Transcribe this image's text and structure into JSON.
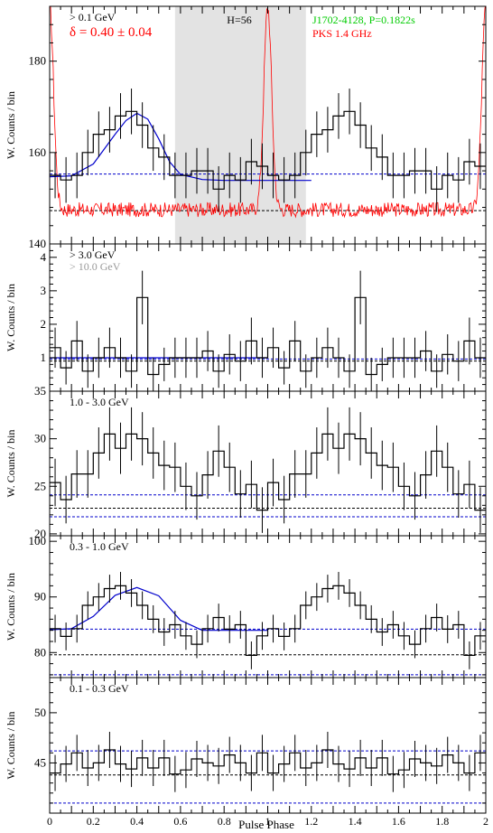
{
  "figure": {
    "xlabel": "Pulse Phase",
    "x_ticks": [
      "0",
      "0.2",
      "0.4",
      "0.6",
      "0.8",
      "1",
      "1.2",
      "1.4",
      "1.6",
      "1.8",
      "2"
    ]
  },
  "colors": {
    "axis": "#000000",
    "histogram": "#000000",
    "radio": "#ff0000",
    "fit": "#0000cc",
    "baseline_black": "#000000",
    "baseline_blue": "#0000cc",
    "offpulse": "#e3e3e3",
    "legend_green": "#00cc00",
    "legend_red": "#ff0000",
    "legend_gray": "#999999"
  },
  "chart_data": [
    {
      "type": "line",
      "panel": "0.1 GeV",
      "ylabel": "W. Counts / bin",
      "ylim": [
        140,
        192
      ],
      "yticks": [
        140,
        160,
        180
      ],
      "energy_label": "> 0.1 GeV",
      "delta_label": "δ = 0.40 ± 0.04",
      "h_label": "H=56",
      "pulsar_label": "J1702-4128, P=0.1822s",
      "radio_label": "PKS 1.4 GHz",
      "offpulse_region": [
        0.575,
        1.175
      ],
      "bin_width": 0.05,
      "counts": [
        155,
        154,
        155,
        160,
        164,
        165,
        168,
        169,
        166,
        161,
        159,
        155,
        155,
        156,
        156,
        152,
        155,
        154,
        158,
        157
      ],
      "errors": [
        5,
        5,
        5,
        5,
        5,
        5,
        5,
        5,
        5,
        5,
        5,
        5,
        5,
        5,
        5,
        5,
        5,
        5,
        5,
        5
      ],
      "baselines": [
        {
          "y": 155.3,
          "color": "blue"
        },
        {
          "y": 147.3,
          "color": "black"
        }
      ],
      "fit": {
        "x": [
          0,
          0.1,
          0.2,
          0.3,
          0.35,
          0.4,
          0.45,
          0.5,
          0.55,
          0.6,
          0.7,
          0.8,
          1.0,
          1.2
        ],
        "y": [
          154.7,
          154.9,
          157.5,
          164.0,
          167.0,
          168.6,
          167.3,
          163.0,
          158.0,
          155.2,
          154.1,
          153.9,
          153.9,
          153.9
        ]
      },
      "radio": {
        "base": 147.5,
        "peak": 192,
        "peak_phase": 1.0,
        "width": 0.018
      }
    },
    {
      "type": "line",
      "panel": "3.0 GeV",
      "ylabel": "W. Counts / bin",
      "ylim": [
        0,
        4.4
      ],
      "yticks": [
        1,
        2,
        3,
        4
      ],
      "energy_label": "> 3.0 GeV",
      "energy_label_2": "> 10.0 GeV",
      "bin_width": 0.05,
      "counts": [
        1.3,
        0.7,
        1.5,
        0.6,
        1.0,
        1.3,
        1.0,
        0.6,
        2.8,
        0.5,
        0.8,
        1.0,
        1.0,
        1.0,
        1.2,
        0.6,
        1.1,
        0.9,
        1.5,
        1.0
      ],
      "errors": [
        0.6,
        0.5,
        0.6,
        0.5,
        0.6,
        0.6,
        0.6,
        0.5,
        0.8,
        0.5,
        0.5,
        0.6,
        0.6,
        0.6,
        0.6,
        0.5,
        0.6,
        0.6,
        0.7,
        0.6
      ],
      "baselines": [
        {
          "y": 0.96,
          "color": "blue"
        },
        {
          "y": 0.9,
          "color": "black"
        }
      ],
      "fit": {
        "x": [
          0,
          0.4,
          0.8,
          1.0
        ],
        "y": [
          1.0,
          1.0,
          1.0,
          1.0
        ]
      }
    },
    {
      "type": "line",
      "panel": "1.0-3.0 GeV",
      "ylabel": "W. Counts / bin",
      "ylim": [
        19.8,
        35
      ],
      "yticks": [
        20,
        25,
        30,
        35
      ],
      "energy_label": "1.0 - 3.0 GeV",
      "bin_width": 0.05,
      "counts": [
        25.4,
        23.6,
        26.3,
        26.3,
        28.5,
        30.5,
        29.0,
        30.5,
        30.0,
        28.5,
        27.2,
        27.0,
        25.0,
        24.0,
        26.2,
        28.7,
        27.0,
        24.2,
        25.2,
        22.5
      ],
      "errors": [
        2.5,
        2.5,
        2.5,
        2.5,
        2.7,
        2.8,
        2.7,
        2.8,
        2.8,
        2.7,
        2.6,
        2.6,
        2.5,
        2.5,
        2.5,
        2.7,
        2.6,
        2.5,
        2.5,
        2.4
      ],
      "baselines": [
        {
          "y": 24.1,
          "color": "blue"
        },
        {
          "y": 22.7,
          "color": "black"
        },
        {
          "y": 21.8,
          "color": "blue"
        }
      ]
    },
    {
      "type": "line",
      "panel": "0.3-1.0 GeV",
      "ylabel": "W. Counts / bin",
      "ylim": [
        75.5,
        101
      ],
      "yticks": [
        80,
        90,
        100
      ],
      "energy_label": "0.3 - 1.0 GeV",
      "bin_width": 0.05,
      "counts": [
        84.3,
        82.9,
        84.3,
        88.5,
        90.0,
        91.5,
        92.0,
        90.7,
        88.5,
        86.0,
        83.7,
        85.0,
        83.0,
        81.5,
        84.3,
        86.3,
        84.2,
        85.0,
        79.5,
        83.0
      ],
      "errors": [
        2.5,
        2.5,
        2.5,
        2.5,
        2.5,
        2.5,
        2.5,
        2.5,
        2.5,
        2.5,
        2.5,
        2.5,
        2.5,
        2.5,
        2.5,
        2.5,
        2.5,
        2.5,
        2.5,
        2.5
      ],
      "baselines": [
        {
          "y": 84.2,
          "color": "blue"
        },
        {
          "y": 79.6,
          "color": "black"
        },
        {
          "y": 76.0,
          "color": "blue"
        }
      ],
      "fit": {
        "x": [
          0,
          0.1,
          0.2,
          0.3,
          0.4,
          0.5,
          0.55,
          0.6,
          0.7,
          1.0
        ],
        "y": [
          84.1,
          84.3,
          86.5,
          90.3,
          91.7,
          90.2,
          88.0,
          85.8,
          84.0,
          84.0
        ]
      }
    },
    {
      "type": "line",
      "panel": "0.1-0.3 GeV",
      "ylabel": "W. Counts / bin",
      "ylim": [
        40.0,
        53.5
      ],
      "yticks": [
        45,
        50
      ],
      "energy_label": "0.1 - 0.3 GeV",
      "bin_width": 0.05,
      "counts": [
        44.0,
        44.9,
        46.0,
        44.5,
        45.0,
        46.3,
        44.9,
        44.4,
        45.5,
        44.5,
        45.5,
        43.9,
        44.3,
        45.4,
        45.0,
        44.7,
        45.8,
        45.0,
        44.0,
        46.0
      ],
      "errors": [
        1.8,
        1.8,
        1.8,
        1.8,
        1.8,
        1.8,
        1.8,
        1.8,
        1.8,
        1.8,
        1.8,
        1.8,
        1.8,
        1.8,
        1.8,
        1.8,
        1.8,
        1.8,
        1.8,
        1.8
      ],
      "baselines": [
        {
          "y": 46.2,
          "color": "blue"
        },
        {
          "y": 43.8,
          "color": "black"
        },
        {
          "y": 41.0,
          "color": "blue"
        }
      ]
    }
  ]
}
